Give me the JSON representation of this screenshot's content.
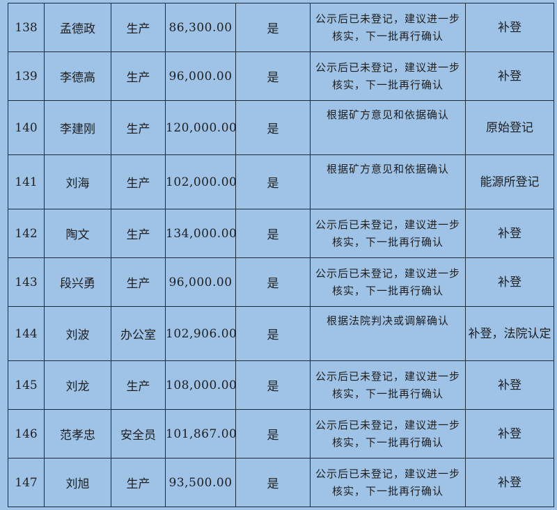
{
  "rows": [
    {
      "no": "138",
      "name": "孟德政",
      "dept": "生产",
      "amount": "86,300.00",
      "flag": "是",
      "note": "公示后已未登记，建议进一步核实，下一批再行确认",
      "remark": "补登"
    },
    {
      "no": "139",
      "name": "李德高",
      "dept": "生产",
      "amount": "96,000.00",
      "flag": "是",
      "note": "公示后已未登记，建议进一步核实，下一批再行确认",
      "remark": "补登"
    },
    {
      "no": "140",
      "name": "李建刚",
      "dept": "生产",
      "amount": "120,000.00",
      "flag": "是",
      "note": "根据矿方意见和依据确认",
      "remark": "原始登记"
    },
    {
      "no": "141",
      "name": "刘海",
      "dept": "生产",
      "amount": "102,000.00",
      "flag": "是",
      "note": "根据矿方意见和依据确认",
      "remark": "能源所登记"
    },
    {
      "no": "142",
      "name": "陶文",
      "dept": "生产",
      "amount": "134,000.00",
      "flag": "是",
      "note": "公示后已未登记，建议进一步核实，下一批再行确认",
      "remark": "补登"
    },
    {
      "no": "143",
      "name": "段兴勇",
      "dept": "生产",
      "amount": "96,000.00",
      "flag": "是",
      "note": "公示后已未登记，建议进一步核实，下一批再行确认",
      "remark": "补登"
    },
    {
      "no": "144",
      "name": "刘波",
      "dept": "办公室",
      "amount": "102,906.00",
      "flag": "是",
      "note": "根据法院判决或调解确认",
      "remark": "补登，法院认定"
    },
    {
      "no": "145",
      "name": "刘龙",
      "dept": "生产",
      "amount": "108,000.00",
      "flag": "是",
      "note": "公示后已未登记，建议进一步核实，下一批再行确认",
      "remark": "补登"
    },
    {
      "no": "146",
      "name": "范孝忠",
      "dept": "安全员",
      "amount": "101,867.00",
      "flag": "是",
      "note": "公示后已未登记，建议进一步核实，下一批再行确认",
      "remark": "补登"
    },
    {
      "no": "147",
      "name": "刘旭",
      "dept": "生产",
      "amount": "93,500.00",
      "flag": "是",
      "note": "公示后已未登记，建议进一步核实，下一批再行确认",
      "remark": "补登"
    }
  ]
}
